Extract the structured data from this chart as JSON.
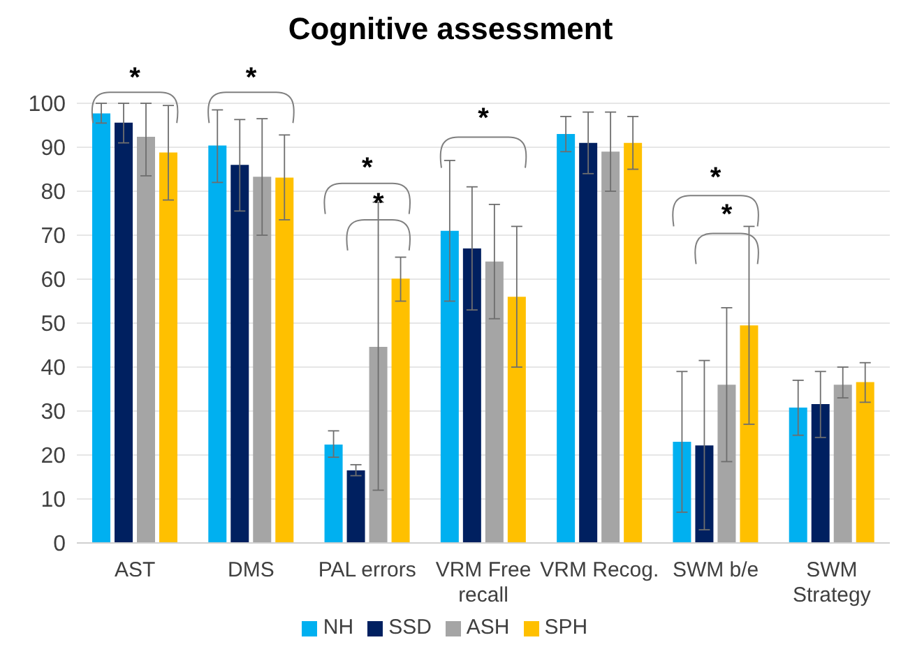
{
  "chart_data": {
    "type": "bar",
    "title": "Cognitive assessment",
    "categories": [
      "AST",
      "DMS",
      "PAL errors",
      "VRM Free recall",
      "VRM Recog.",
      "SWM b/e",
      "SWM Strategy"
    ],
    "series": [
      {
        "name": "NH",
        "color": "#00b0f0",
        "values": [
          97.7,
          90.4,
          22.4,
          71,
          93,
          23,
          30.8
        ],
        "errors": [
          [
            95.5,
            100
          ],
          [
            82,
            98.5
          ],
          [
            19.5,
            25.5
          ],
          [
            55,
            87
          ],
          [
            89,
            97
          ],
          [
            7,
            39
          ],
          [
            24.5,
            37
          ]
        ]
      },
      {
        "name": "SSD",
        "color": "#002060",
        "values": [
          95.6,
          86,
          16.5,
          67,
          91,
          22.2,
          31.6
        ],
        "errors": [
          [
            91,
            100
          ],
          [
            75.5,
            96.3
          ],
          [
            15.3,
            17.8
          ],
          [
            53,
            81
          ],
          [
            84,
            98
          ],
          [
            3,
            41.5
          ],
          [
            24,
            39
          ]
        ]
      },
      {
        "name": "ASH",
        "color": "#a5a5a5",
        "values": [
          92.4,
          83.3,
          44.6,
          64,
          89,
          36,
          36
        ],
        "errors": [
          [
            83.5,
            100
          ],
          [
            70,
            96.5
          ],
          [
            12,
            77.5
          ],
          [
            51,
            77
          ],
          [
            80,
            98
          ],
          [
            18.5,
            53.5
          ],
          [
            33,
            40
          ]
        ]
      },
      {
        "name": "SPH",
        "color": "#ffc000",
        "values": [
          88.8,
          83.1,
          60.1,
          56,
          91,
          49.5,
          36.6
        ],
        "errors": [
          [
            78,
            99.5
          ],
          [
            73.5,
            92.8
          ],
          [
            55,
            65
          ],
          [
            40,
            72
          ],
          [
            85,
            97
          ],
          [
            27,
            72
          ],
          [
            32,
            41
          ]
        ]
      }
    ],
    "ylim": [
      0,
      100
    ],
    "yticks": [
      0,
      10,
      20,
      30,
      40,
      50,
      60,
      70,
      80,
      90,
      100
    ],
    "grid": "y",
    "legend": "bottom",
    "annotations": [
      "*",
      "*",
      "*",
      "*",
      "*",
      "*",
      "*"
    ]
  }
}
